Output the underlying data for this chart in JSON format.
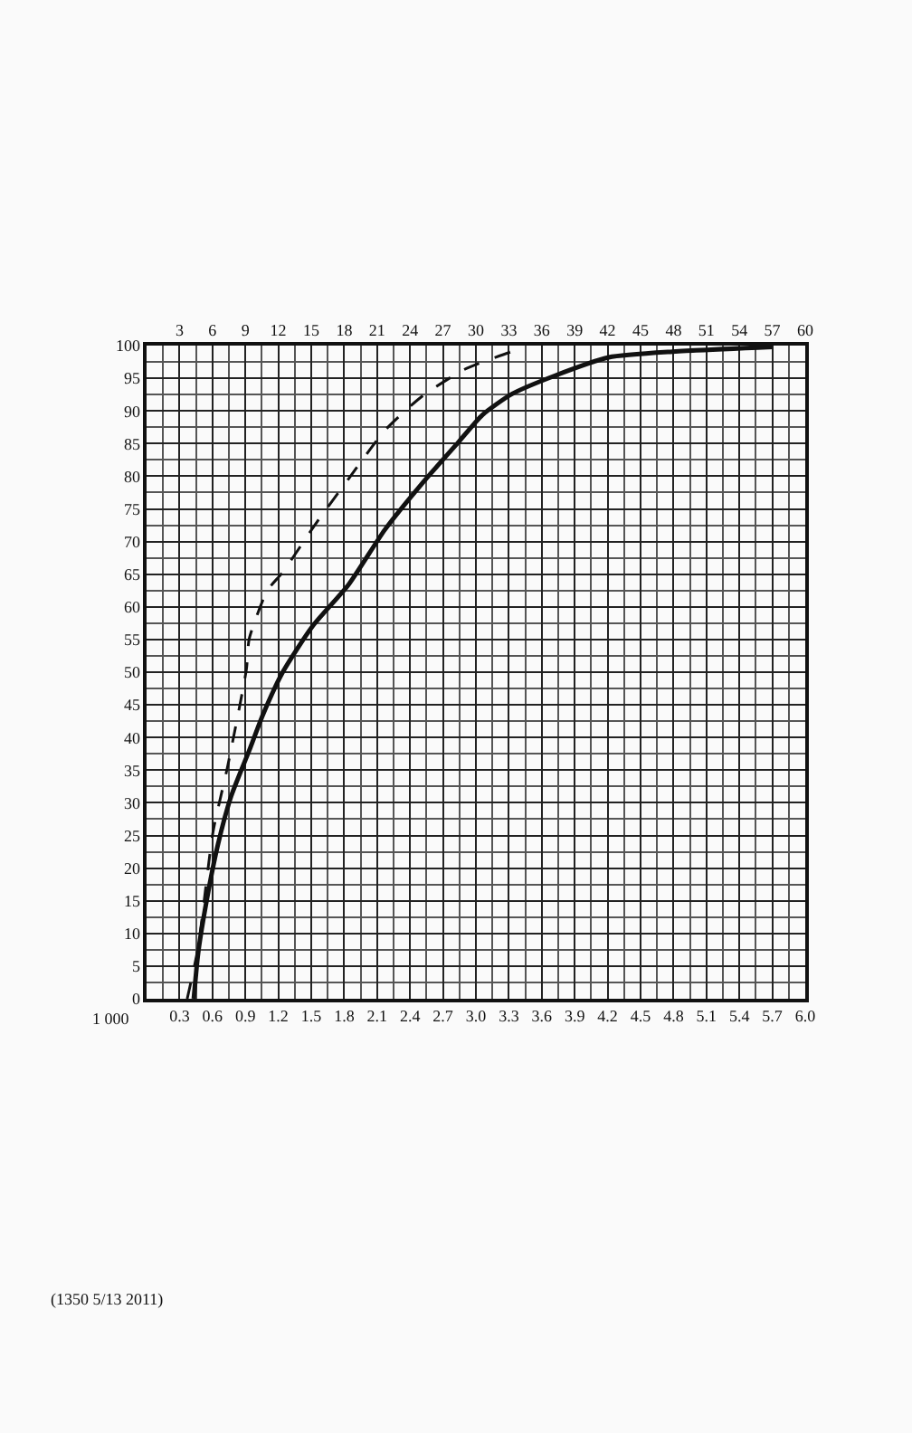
{
  "chart_data": {
    "type": "line",
    "xlim": [
      0,
      6
    ],
    "ylim": [
      0,
      100
    ],
    "xticks": [
      {
        "value": 0,
        "label": null
      },
      {
        "value": 0.3,
        "label": "0.3"
      },
      {
        "value": 0.6,
        "label": "0.6"
      },
      {
        "value": 0.9,
        "label": "0.9"
      },
      {
        "value": 1.2,
        "label": "1.2"
      },
      {
        "value": 1.5,
        "label": "1.5"
      },
      {
        "value": 1.8,
        "label": "1.8"
      },
      {
        "value": 2.1,
        "label": "2.1"
      },
      {
        "value": 2.4,
        "label": "2.4"
      },
      {
        "value": 2.7,
        "label": "2.7"
      },
      {
        "value": 3.0,
        "label": "3.0"
      },
      {
        "value": 3.3,
        "label": "3.3"
      },
      {
        "value": 3.6,
        "label": "3.6"
      },
      {
        "value": 3.9,
        "label": "3.9"
      },
      {
        "value": 4.2,
        "label": "4.2"
      },
      {
        "value": 4.5,
        "label": "4.5"
      },
      {
        "value": 4.8,
        "label": "4.8"
      },
      {
        "value": 5.1,
        "label": "5.1"
      },
      {
        "value": 5.4,
        "label": "5.4"
      },
      {
        "value": 5.7,
        "label": "5.7"
      },
      {
        "value": 6.0,
        "label": "6.0"
      }
    ],
    "x2lim": [
      0,
      60
    ],
    "x2ticks": [
      3,
      6,
      9,
      12,
      15,
      18,
      21,
      24,
      27,
      30,
      33,
      36,
      39,
      42,
      45,
      48,
      51,
      54,
      57,
      60
    ],
    "yticks": [
      0,
      5,
      10,
      15,
      20,
      25,
      30,
      35,
      40,
      45,
      50,
      55,
      60,
      65,
      70,
      75,
      80,
      85,
      90,
      95,
      100
    ],
    "grid": true,
    "marker": "none",
    "series": [
      {
        "color": "#111111",
        "line_style": "solid",
        "x": [
          0.43,
          0.47,
          0.55,
          0.65,
          0.77,
          0.935,
          1.06,
          1.24,
          1.51,
          1.84,
          2.17,
          2.5,
          2.84,
          3.06,
          3.33,
          3.72,
          4.21,
          4.82,
          5.7
        ],
        "values": [
          0,
          7,
          15.3,
          23.6,
          31,
          38,
          43.5,
          50,
          57,
          63.4,
          71.8,
          78.7,
          85.2,
          89.4,
          92.6,
          95.4,
          98.2,
          99.1,
          99.8
        ]
      },
      {
        "color": "#111111",
        "line_style": "dashed",
        "x": [
          0.37,
          0.47,
          0.605,
          0.74,
          0.91,
          0.935,
          1.1,
          1.24,
          1.54,
          1.84,
          2.17,
          2.5,
          2.89,
          3.33,
          3.44
        ],
        "values": [
          0,
          7.9,
          25.5,
          35.7,
          50.5,
          55.1,
          62.5,
          65.3,
          72.7,
          79.6,
          87,
          92.1,
          96.3,
          99.1,
          99.6
        ]
      }
    ],
    "annotations": [
      "1 000",
      "(1350 5/13 2011)"
    ]
  }
}
